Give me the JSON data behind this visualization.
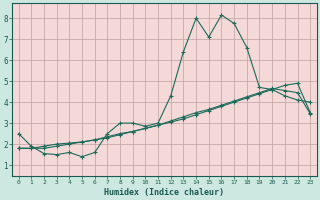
{
  "xlabel": "Humidex (Indice chaleur)",
  "bg_color": "#cce8e0",
  "plot_bg_color": "#f5d8d8",
  "line_color": "#1a6b5a",
  "grid_color": "#c0a0a0",
  "outer_bg": "#cce8e0",
  "xlim": [
    -0.5,
    23.5
  ],
  "ylim": [
    0.5,
    8.7
  ],
  "x_ticks": [
    0,
    1,
    2,
    3,
    4,
    5,
    6,
    7,
    8,
    9,
    10,
    11,
    12,
    13,
    14,
    15,
    16,
    17,
    18,
    19,
    20,
    21,
    22,
    23
  ],
  "y_ticks": [
    1,
    2,
    3,
    4,
    5,
    6,
    7,
    8
  ],
  "line1_y": [
    2.5,
    1.9,
    1.55,
    1.5,
    1.6,
    1.4,
    1.6,
    2.5,
    3.0,
    3.0,
    2.85,
    3.0,
    4.3,
    6.4,
    8.0,
    7.1,
    8.15,
    7.75,
    6.6,
    4.7,
    4.6,
    4.3,
    4.1,
    4.0
  ],
  "line2_y": [
    1.8,
    1.8,
    1.8,
    1.9,
    2.0,
    2.1,
    2.2,
    2.35,
    2.5,
    2.6,
    2.75,
    2.9,
    3.05,
    3.2,
    3.4,
    3.6,
    3.8,
    4.0,
    4.2,
    4.4,
    4.6,
    4.8,
    4.9,
    3.5
  ],
  "line3_y": [
    1.8,
    1.8,
    1.9,
    2.0,
    2.05,
    2.1,
    2.2,
    2.3,
    2.45,
    2.6,
    2.75,
    2.9,
    3.1,
    3.3,
    3.5,
    3.65,
    3.85,
    4.05,
    4.25,
    4.45,
    4.65,
    4.55,
    4.45,
    3.45
  ]
}
